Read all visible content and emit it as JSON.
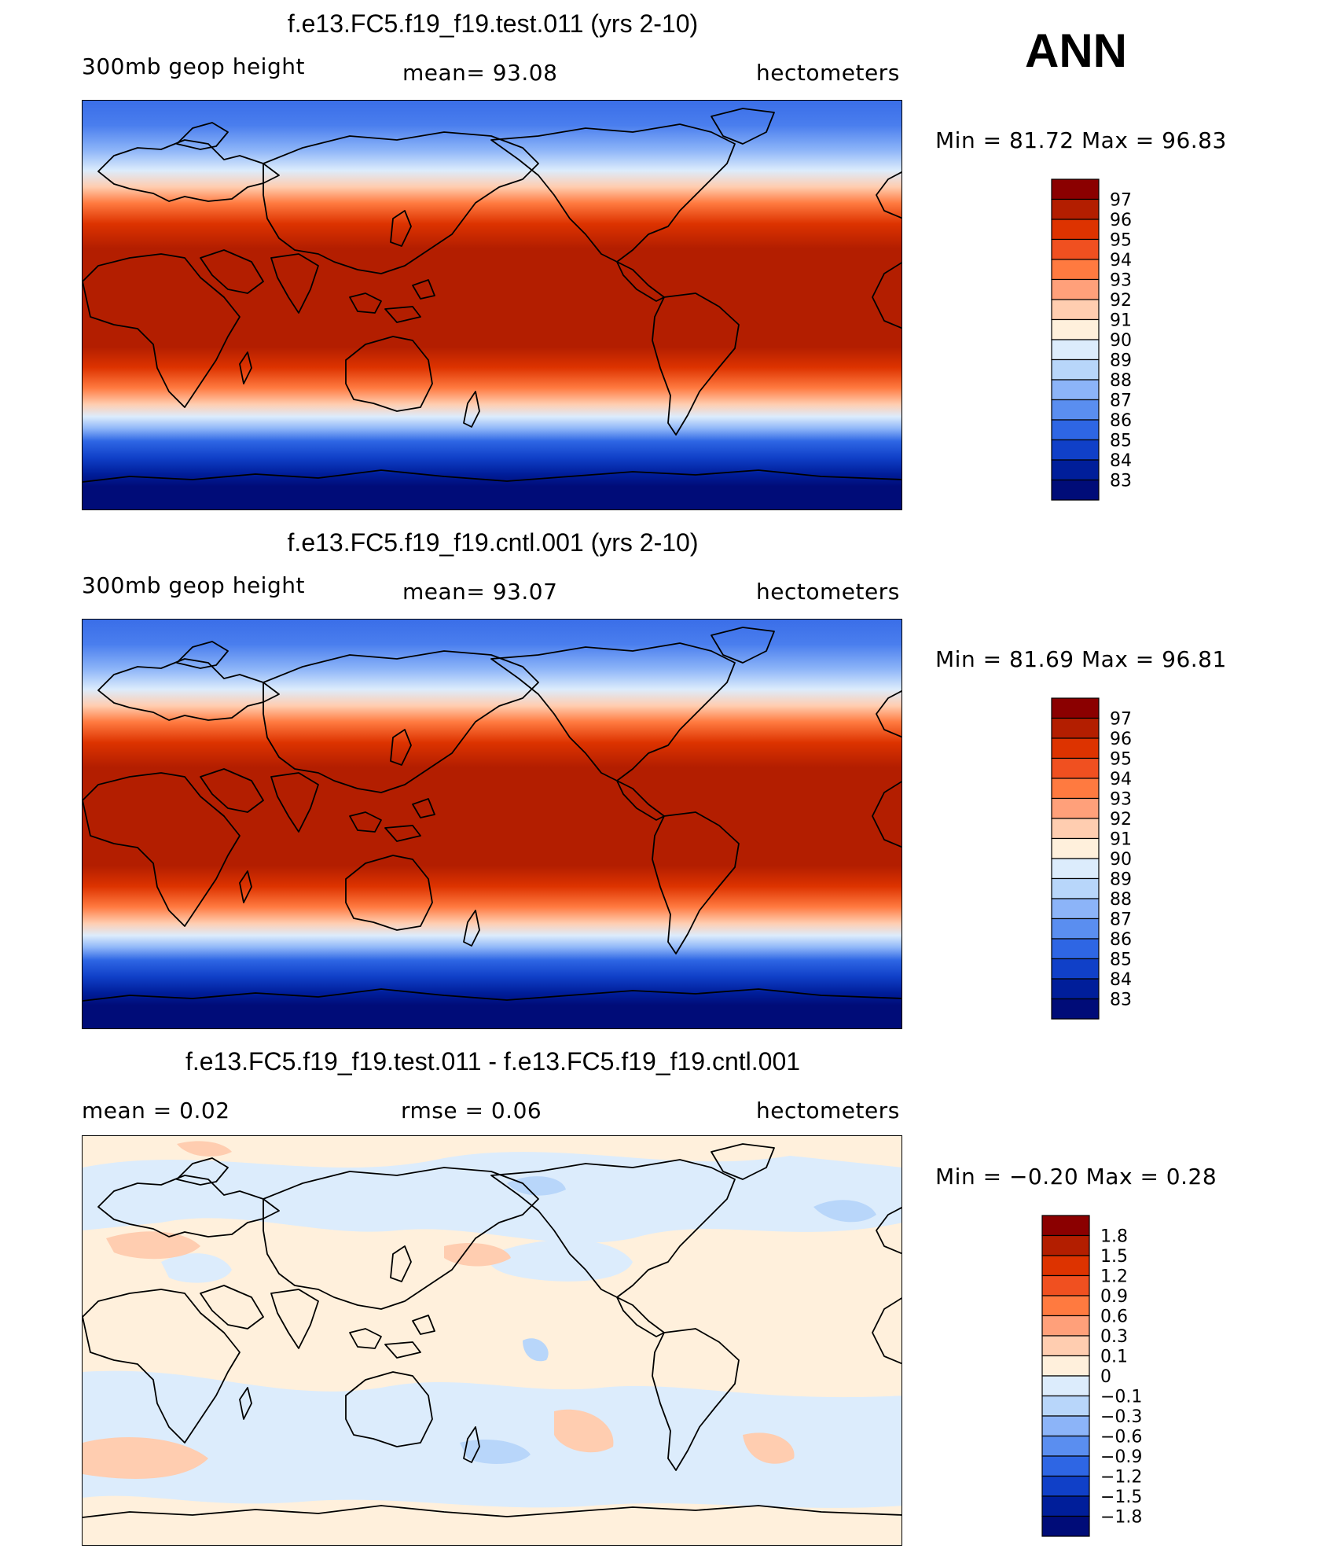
{
  "season": "ANN",
  "panels": [
    {
      "id": "test",
      "title": "f.e13.FC5.f19_f19.test.011 (yrs 2-10)",
      "left_label": "300mb  geop  height",
      "center_label": "mean=   93.08",
      "units": "hectometers",
      "minmax": "Min  =    81.72  Max  =    96.83",
      "levels": [
        "97",
        "96",
        "95",
        "94",
        "93",
        "92",
        "91",
        "90",
        "89",
        "88",
        "87",
        "86",
        "85",
        "84",
        "83"
      ],
      "colors": [
        "#8b0000",
        "#b31e00",
        "#dd3300",
        "#f05020",
        "#ff7a40",
        "#ffa07a",
        "#ffcdb0",
        "#fff0dc",
        "#dcecfc",
        "#b8d6fa",
        "#8cb4f8",
        "#5a8ef0",
        "#2e66e4",
        "#1040c8",
        "#001e9a",
        "#000c78"
      ]
    },
    {
      "id": "cntl",
      "title": "f.e13.FC5.f19_f19.cntl.001 (yrs 2-10)",
      "left_label": "300mb  geop  height",
      "center_label": "mean=   93.07",
      "units": "hectometers",
      "minmax": "Min  =    81.69  Max  =    96.81",
      "levels": [
        "97",
        "96",
        "95",
        "94",
        "93",
        "92",
        "91",
        "90",
        "89",
        "88",
        "87",
        "86",
        "85",
        "84",
        "83"
      ],
      "colors": [
        "#8b0000",
        "#b31e00",
        "#dd3300",
        "#f05020",
        "#ff7a40",
        "#ffa07a",
        "#ffcdb0",
        "#fff0dc",
        "#dcecfc",
        "#b8d6fa",
        "#8cb4f8",
        "#5a8ef0",
        "#2e66e4",
        "#1040c8",
        "#001e9a",
        "#000c78"
      ]
    },
    {
      "id": "diff",
      "title": "f.e13.FC5.f19_f19.test.011 - f.e13.FC5.f19_f19.cntl.001",
      "left_label": "mean  =      0.02",
      "center_label": "rmse  =      0.06",
      "units": "hectometers",
      "minmax": "Min  =    −0.20  Max  =      0.28",
      "levels": [
        "1.8",
        "1.5",
        "1.2",
        "0.9",
        "0.6",
        "0.3",
        "0.1",
        "0",
        "−0.1",
        "−0.3",
        "−0.6",
        "−0.9",
        "−1.2",
        "−1.5",
        "−1.8"
      ],
      "colors": [
        "#8b0000",
        "#b31e00",
        "#dd3300",
        "#f05020",
        "#ff7a40",
        "#ffa07a",
        "#ffcdb0",
        "#fff0dc",
        "#dcecfc",
        "#b8d6fa",
        "#8cb4f8",
        "#5a8ef0",
        "#2e66e4",
        "#1040c8",
        "#001e9a",
        "#000c78"
      ]
    }
  ]
}
